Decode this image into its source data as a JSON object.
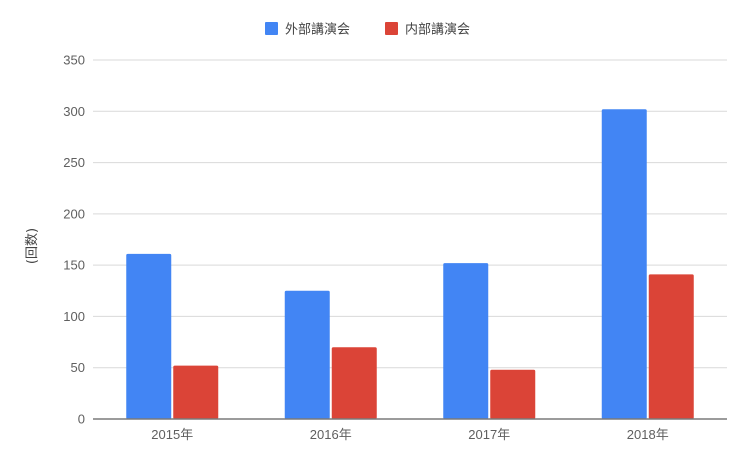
{
  "chart_data": {
    "type": "bar",
    "title": "",
    "xlabel": "",
    "ylabel": "(回数)",
    "categories": [
      "2015年",
      "2016年",
      "2017年",
      "2018年"
    ],
    "series": [
      {
        "name": "外部講演会",
        "color": "#4285F4",
        "values": [
          161,
          125,
          152,
          302
        ]
      },
      {
        "name": "内部講演会",
        "color": "#DB4437",
        "values": [
          52,
          70,
          48,
          141
        ]
      }
    ],
    "ylim": [
      0,
      350
    ],
    "yticks": [
      0,
      50,
      100,
      150,
      200,
      250,
      300,
      350
    ],
    "grid": true,
    "legend_position": "top-center",
    "colors": {
      "grid": "#d9d9d9",
      "baseline": "#7a7a7a"
    }
  }
}
